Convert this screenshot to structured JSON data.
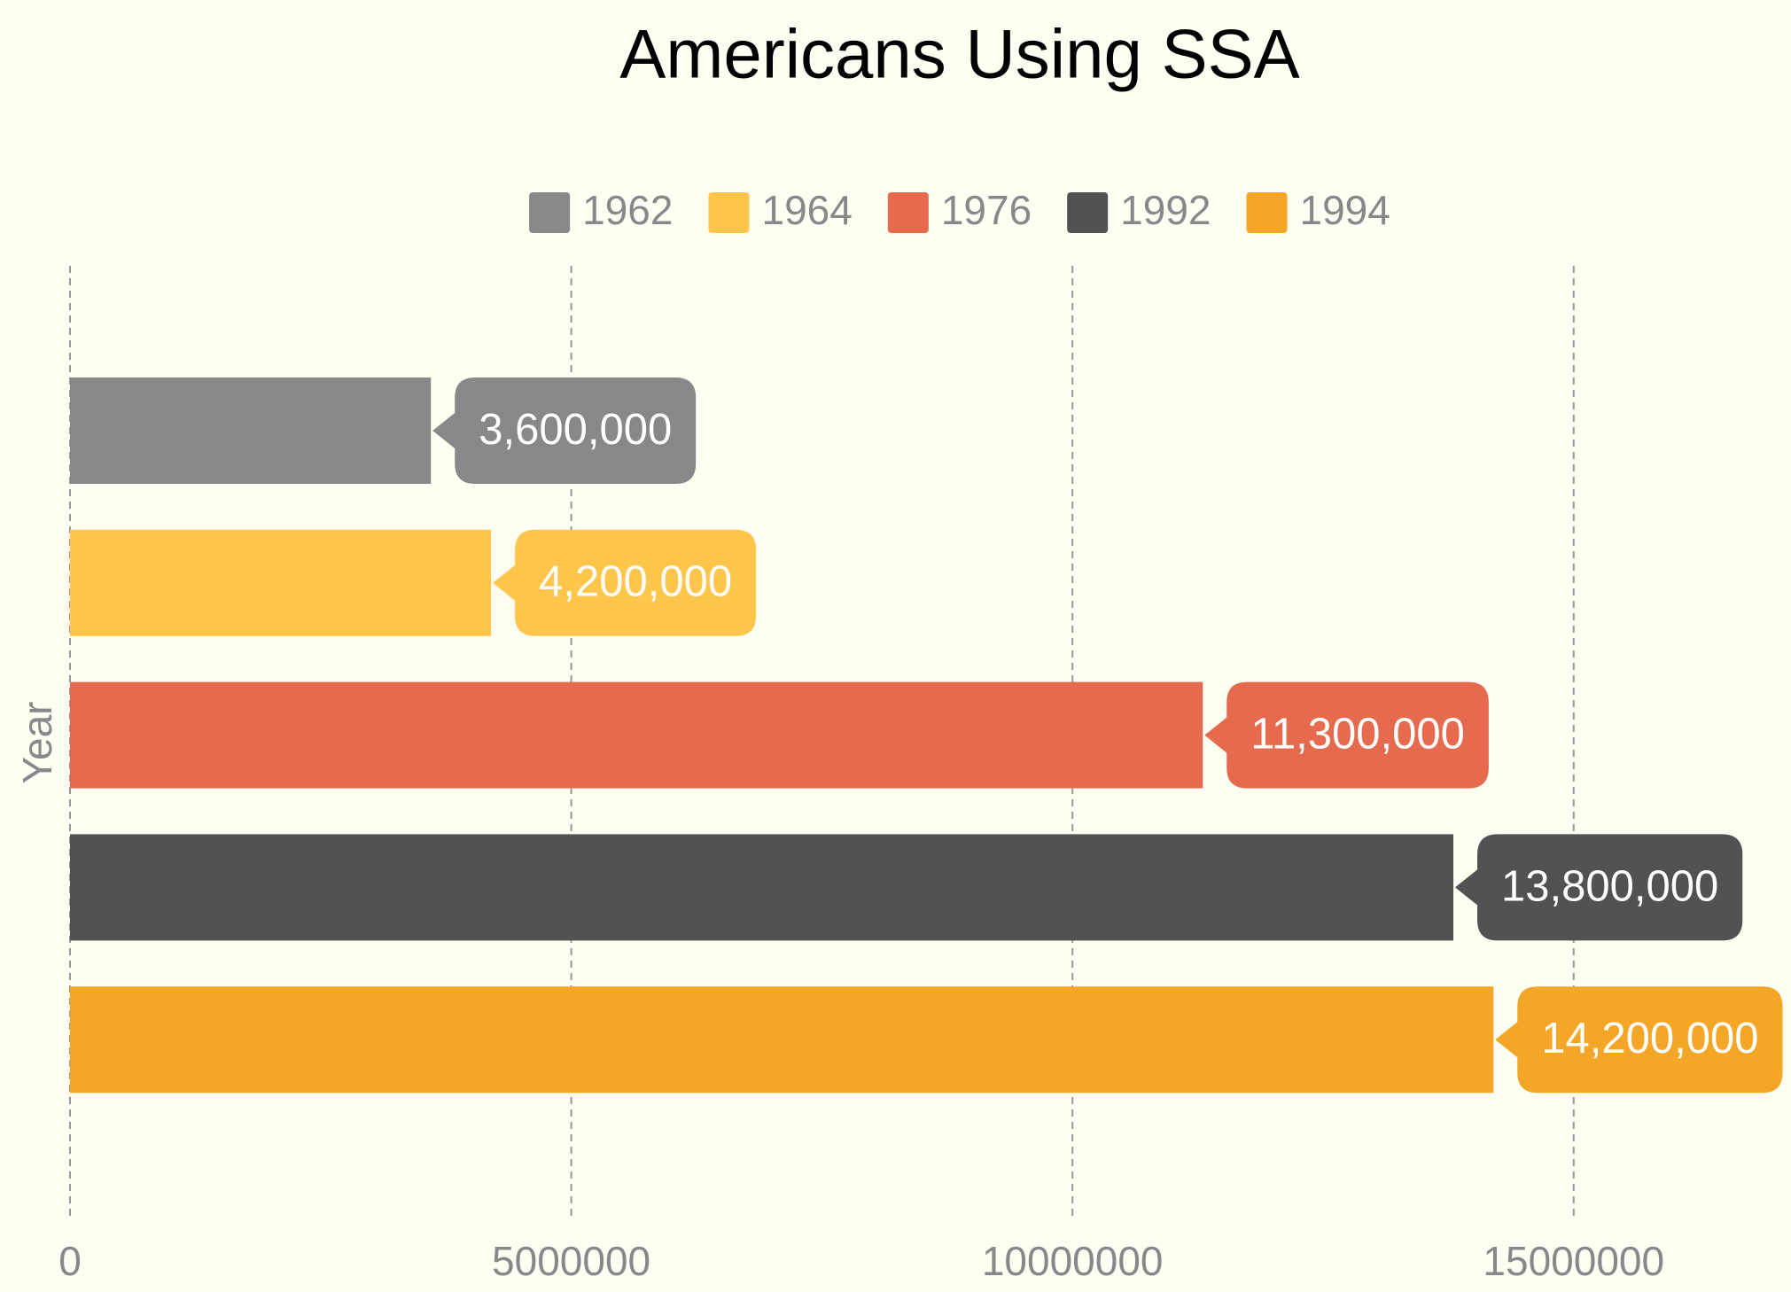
{
  "chart_data": {
    "type": "bar",
    "orientation": "horizontal",
    "title": "Americans Using SSA",
    "y_label": "Year",
    "categories": [
      null
    ],
    "series": [
      {
        "name": "1962",
        "color": "#888888",
        "values": [
          3600000
        ],
        "value_labels": [
          "3,600,000"
        ]
      },
      {
        "name": "1964",
        "color": "#ffc64b",
        "values": [
          4200000
        ],
        "value_labels": [
          "4,200,000"
        ]
      },
      {
        "name": "1976",
        "color": "#e66b4e",
        "values": [
          11300000
        ],
        "value_labels": [
          "11,300,000"
        ]
      },
      {
        "name": "1992",
        "color": "#525252",
        "values": [
          13800000
        ],
        "value_labels": [
          "13,800,000"
        ]
      },
      {
        "name": "1994",
        "color": "#f4a627",
        "values": [
          14200000
        ],
        "value_labels": [
          "14,200,000"
        ]
      }
    ],
    "xlim": [
      0,
      17000000
    ],
    "xticks": [
      0,
      5000000,
      10000000,
      15000000
    ],
    "grid": true,
    "legend": "top"
  }
}
